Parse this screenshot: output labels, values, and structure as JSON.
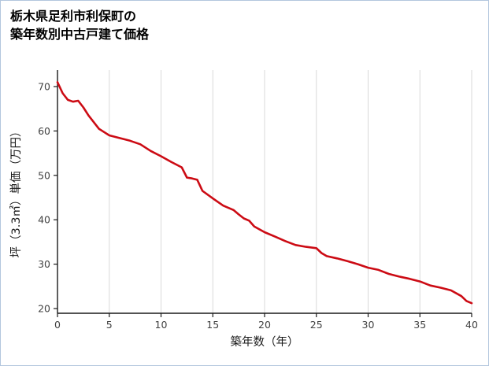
{
  "title": {
    "line1": "栃木県足利市利保町の",
    "line2": "築年数別中古戸建て価格"
  },
  "chart_data": {
    "type": "line",
    "title": "栃木県足利市利保町の築年数別中古戸建て価格",
    "xlabel": "築年数（年）",
    "ylabel": "坪（3.3㎡）単価（万円）",
    "xlim": [
      0,
      40
    ],
    "ylim": [
      20,
      72
    ],
    "x_ticks": [
      0,
      5,
      10,
      15,
      20,
      25,
      30,
      35,
      40
    ],
    "y_ticks": [
      20,
      30,
      40,
      50,
      60,
      70
    ],
    "grid": "vertical-only",
    "legend": "none",
    "line_color": "#cc0b14",
    "grid_color": "#d9d9d9",
    "axis_color": "#1a1a1a",
    "tick_label_color": "#404040",
    "series": [
      {
        "name": "坪単価",
        "x": [
          0,
          0.5,
          1,
          1.5,
          2,
          2.5,
          3,
          4,
          5,
          6,
          7,
          8,
          9,
          10,
          11,
          12,
          12.5,
          13,
          13.5,
          14,
          15,
          16,
          17,
          17.5,
          18,
          18.5,
          19,
          20,
          21,
          22,
          23,
          24,
          25,
          25.5,
          26,
          27,
          28,
          29,
          30,
          31,
          32,
          33,
          34,
          35,
          36,
          37,
          38,
          39,
          39.5,
          40
        ],
        "y": [
          71,
          68.5,
          67,
          66.6,
          66.8,
          65.3,
          63.5,
          60.5,
          59,
          58.4,
          57.8,
          57,
          55.5,
          54.3,
          53,
          51.8,
          49.5,
          49.3,
          49,
          46.5,
          44.8,
          43.2,
          42.2,
          41.2,
          40.3,
          39.8,
          38.5,
          37.2,
          36.2,
          35.2,
          34.3,
          33.9,
          33.6,
          32.5,
          31.8,
          31.3,
          30.7,
          30,
          29.2,
          28.7,
          27.8,
          27.2,
          26.7,
          26.1,
          25.2,
          24.7,
          24.1,
          22.8,
          21.7,
          21.2
        ]
      }
    ]
  }
}
